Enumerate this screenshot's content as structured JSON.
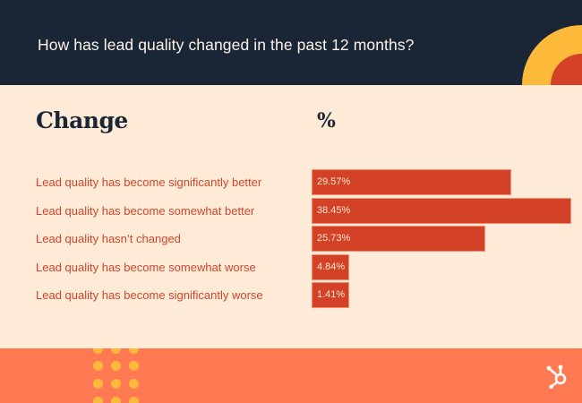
{
  "header": {
    "title": "How has lead quality changed in the past 12 months?"
  },
  "columns": {
    "change": "Change",
    "percent": "%"
  },
  "colors": {
    "header_bg": "#1a2635",
    "body_bg": "#fdebd8",
    "bar": "#d34226",
    "label_text": "#d3452a",
    "footer_bg": "#ff7a52",
    "accent_yellow": "#fdba3a"
  },
  "footer": {
    "logo": "hubspot-sprocket-icon"
  },
  "chart_data": {
    "type": "bar",
    "orientation": "horizontal",
    "title": "How has lead quality changed in the past 12 months?",
    "xlabel": "%",
    "ylabel": "Change",
    "categories": [
      "Lead quality has become significantly better",
      "Lead quality has become somewhat better",
      "Lead quality hasn’t changed",
      "Lead quality has become somewhat worse",
      "Lead quality has become significantly worse"
    ],
    "values": [
      29.57,
      38.45,
      25.73,
      4.84,
      1.41
    ],
    "value_labels": [
      "29.57%",
      "38.45%",
      "25.73%",
      "4.84%",
      "1.41%"
    ],
    "xlim": [
      0,
      38.45
    ],
    "grid": false,
    "legend": "none"
  }
}
